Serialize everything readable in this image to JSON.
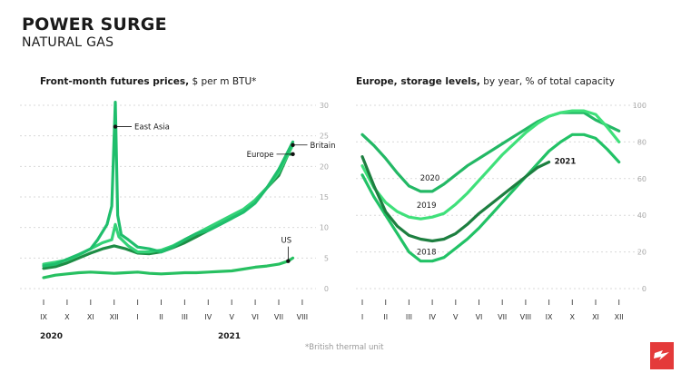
{
  "title": "POWER SURGE",
  "subtitle": "NATURAL GAS",
  "footnote": "*British thermal unit",
  "brand_color": "#e43a3a",
  "colors": {
    "east_asia": "#1fbe6c",
    "britain": "#33d277",
    "europe": "#1d8d45",
    "us": "#27c061",
    "y2018": "#22c266",
    "y2019": "#3fe07a",
    "y2020": "#23b865",
    "y2021": "#1d7f40",
    "grid": "#d9d9d9"
  },
  "chart_data": [
    {
      "type": "line",
      "title_bold": "Front-month futures prices,",
      "title_rest": " $ per m BTU*",
      "unit": "$ per m BTU",
      "ylim": [
        0,
        30
      ],
      "yticks": [
        0,
        5,
        10,
        15,
        20,
        25,
        30
      ],
      "xlim": [
        0,
        12
      ],
      "x_tick_labels": [
        "IX",
        "X",
        "XI",
        "XII",
        "I",
        "II",
        "III",
        "IV",
        "V",
        "VI",
        "VII",
        "VIII"
      ],
      "year_labels": [
        "2020",
        "2021"
      ],
      "annotations": [
        "East Asia",
        "Britain",
        "Europe",
        "US"
      ],
      "series": [
        {
          "name": "East Asia",
          "color_key": "east_asia",
          "x": [
            0,
            0.5,
            1,
            1.5,
            2,
            2.3,
            2.7,
            2.9,
            3.05,
            3.15,
            3.3,
            3.6,
            4,
            4.5,
            5,
            5.5,
            6,
            6.5,
            7,
            7.5,
            8,
            8.5,
            9,
            9.5,
            10,
            10.4,
            10.6
          ],
          "values": [
            3.7,
            4.0,
            4.8,
            5.6,
            6.5,
            8.0,
            10.5,
            13.5,
            30.5,
            12.0,
            8.8,
            8.0,
            6.8,
            6.5,
            6.0,
            6.8,
            8.0,
            9.0,
            9.5,
            10.5,
            11.5,
            12.5,
            14.0,
            16.5,
            19.5,
            22.5,
            24.0
          ]
        },
        {
          "name": "Britain",
          "color_key": "britain",
          "x": [
            0,
            0.5,
            1,
            1.5,
            2,
            2.5,
            2.9,
            3.05,
            3.2,
            3.6,
            4,
            4.5,
            5,
            5.5,
            6,
            6.5,
            7,
            7.5,
            8,
            8.5,
            9,
            9.5,
            10,
            10.4,
            10.6
          ],
          "values": [
            4.0,
            4.3,
            4.7,
            5.5,
            6.5,
            7.5,
            8.0,
            10.5,
            8.5,
            7.0,
            6.0,
            6.0,
            6.3,
            7.0,
            8.0,
            9.0,
            10.0,
            11.0,
            12.0,
            13.0,
            14.5,
            16.5,
            19.0,
            22.0,
            23.5
          ]
        },
        {
          "name": "Europe",
          "color_key": "europe",
          "x": [
            0,
            0.5,
            1,
            1.5,
            2,
            2.5,
            3,
            3.5,
            4,
            4.5,
            5,
            5.5,
            6,
            6.5,
            7,
            7.5,
            8,
            8.5,
            9,
            9.5,
            10,
            10.4,
            10.6
          ],
          "values": [
            3.3,
            3.6,
            4.2,
            5.0,
            5.8,
            6.5,
            7.0,
            6.5,
            5.8,
            5.7,
            6.0,
            6.7,
            7.5,
            8.5,
            9.5,
            10.5,
            11.5,
            12.8,
            14.5,
            16.5,
            18.5,
            22.0,
            22.0
          ]
        },
        {
          "name": "US",
          "color_key": "us",
          "x": [
            0,
            0.5,
            1,
            1.5,
            2,
            2.5,
            3,
            3.5,
            4,
            4.5,
            5,
            5.5,
            6,
            6.5,
            7,
            7.5,
            8,
            8.5,
            9,
            9.5,
            10,
            10.4,
            10.6
          ],
          "values": [
            1.8,
            2.2,
            2.4,
            2.6,
            2.7,
            2.6,
            2.5,
            2.6,
            2.7,
            2.5,
            2.4,
            2.5,
            2.6,
            2.6,
            2.7,
            2.8,
            2.9,
            3.2,
            3.5,
            3.7,
            4.0,
            4.5,
            5.0
          ]
        }
      ]
    },
    {
      "type": "line",
      "title_bold": "Europe, storage levels,",
      "title_rest": " by year, % of total capacity",
      "unit": "% of total capacity",
      "ylim": [
        0,
        100
      ],
      "yticks": [
        0,
        20,
        40,
        60,
        80,
        100
      ],
      "xlim": [
        0,
        11
      ],
      "x_tick_labels": [
        "I",
        "II",
        "III",
        "IV",
        "V",
        "VI",
        "VII",
        "VIII",
        "IX",
        "X",
        "XI",
        "XII"
      ],
      "series": [
        {
          "name": "2018",
          "color_key": "y2018",
          "x": [
            0,
            0.5,
            1,
            1.5,
            2,
            2.5,
            3,
            3.5,
            4,
            4.5,
            5,
            5.5,
            6,
            6.5,
            7,
            7.5,
            8,
            8.5,
            9,
            9.5,
            10,
            10.5,
            11
          ],
          "values": [
            62,
            50,
            40,
            30,
            20,
            15,
            15,
            17,
            22,
            27,
            33,
            40,
            47,
            54,
            61,
            68,
            75,
            80,
            84,
            84,
            82,
            76,
            69
          ]
        },
        {
          "name": "2019",
          "color_key": "y2019",
          "x": [
            0,
            0.5,
            1,
            1.5,
            2,
            2.5,
            3,
            3.5,
            4,
            4.5,
            5,
            5.5,
            6,
            6.5,
            7,
            7.5,
            8,
            8.5,
            9,
            9.5,
            10,
            10.5,
            11
          ],
          "values": [
            67,
            55,
            47,
            42,
            39,
            38,
            39,
            41,
            46,
            52,
            59,
            66,
            73,
            79,
            85,
            90,
            94,
            96,
            97,
            97,
            95,
            88,
            80
          ]
        },
        {
          "name": "2020",
          "color_key": "y2020",
          "x": [
            0,
            0.5,
            1,
            1.5,
            2,
            2.5,
            3,
            3.5,
            4,
            4.5,
            5,
            5.5,
            6,
            6.5,
            7,
            7.5,
            8,
            8.5,
            9,
            9.5,
            10,
            10.5,
            11
          ],
          "values": [
            84,
            78,
            71,
            63,
            56,
            53,
            53,
            57,
            62,
            67,
            71,
            75,
            79,
            83,
            87,
            91,
            94,
            96,
            96,
            96,
            92,
            89,
            86
          ]
        },
        {
          "name": "2021",
          "color_key": "y2021",
          "x": [
            0,
            0.5,
            1,
            1.5,
            2,
            2.5,
            3,
            3.5,
            4,
            4.5,
            5,
            5.5,
            6,
            6.5,
            7,
            7.5,
            8
          ],
          "values": [
            72,
            56,
            42,
            34,
            29,
            27,
            26,
            27,
            30,
            35,
            41,
            46,
            51,
            56,
            61,
            66,
            69
          ]
        }
      ]
    }
  ]
}
